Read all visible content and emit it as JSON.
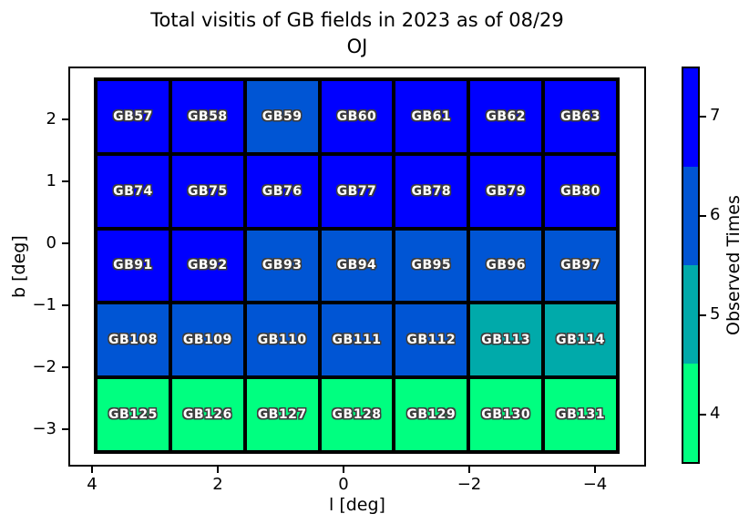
{
  "title": {
    "line1": "Total visitis of GB fields in 2023 as of 08/29",
    "line2": "OJ"
  },
  "axes": {
    "xlabel": "l [deg]",
    "ylabel": "b [deg]",
    "xticks": [
      "4",
      "2",
      "0",
      "−2",
      "−4"
    ],
    "yticks": [
      "2",
      "1",
      "0",
      "−1",
      "−2",
      "−3"
    ]
  },
  "colorbar": {
    "label": "Observed Times",
    "ticks": [
      "7",
      "6",
      "5",
      "4"
    ],
    "value_colors": {
      "7": "#0000FF",
      "6": "#0055D4",
      "5": "#00AAAA",
      "4": "#00FF80"
    }
  },
  "chart_data": {
    "type": "heatmap",
    "title": "Total visitis of GB fields in 2023 as of 08/29 OJ",
    "xlabel": "l [deg]",
    "ylabel": "b [deg]",
    "x_tick_labels": [
      4,
      2,
      0,
      -2,
      -4
    ],
    "y_tick_labels": [
      2,
      1,
      0,
      -1,
      -2,
      -3
    ],
    "grid_shape": [
      5,
      7
    ],
    "colorbar_label": "Observed Times",
    "colorbar_levels": [
      4,
      5,
      6,
      7
    ],
    "legend_position": "right",
    "rows": [
      {
        "fields": [
          "GB57",
          "GB58",
          "GB59",
          "GB60",
          "GB61",
          "GB62",
          "GB63"
        ],
        "values": [
          7,
          7,
          6,
          7,
          7,
          7,
          7
        ]
      },
      {
        "fields": [
          "GB74",
          "GB75",
          "GB76",
          "GB77",
          "GB78",
          "GB79",
          "GB80"
        ],
        "values": [
          7,
          7,
          7,
          7,
          7,
          7,
          7
        ]
      },
      {
        "fields": [
          "GB91",
          "GB92",
          "GB93",
          "GB94",
          "GB95",
          "GB96",
          "GB97"
        ],
        "values": [
          7,
          7,
          6,
          6,
          6,
          6,
          6
        ]
      },
      {
        "fields": [
          "GB108",
          "GB109",
          "GB110",
          "GB111",
          "GB112",
          "GB113",
          "GB114"
        ],
        "values": [
          6,
          6,
          6,
          6,
          6,
          5,
          5
        ]
      },
      {
        "fields": [
          "GB125",
          "GB126",
          "GB127",
          "GB128",
          "GB129",
          "GB130",
          "GB131"
        ],
        "values": [
          4,
          4,
          4,
          4,
          4,
          4,
          4
        ]
      }
    ]
  }
}
